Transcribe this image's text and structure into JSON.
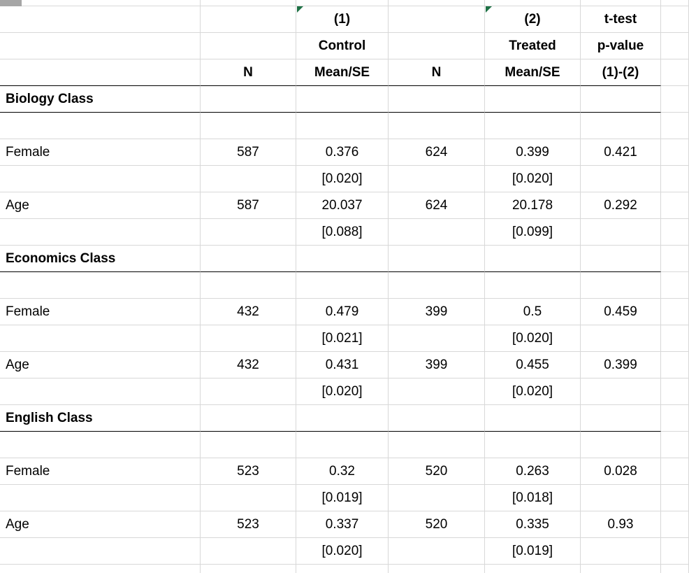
{
  "colors": {
    "background": "#ffffff",
    "text": "#000000",
    "gridline": "#d8d8d8",
    "section_rule": "#000000",
    "error_indicator": "#1e7145",
    "corner_box": "#a6a6a6"
  },
  "indicators": {
    "icon": "cell-error-corner-triangle",
    "count": 2
  },
  "table": {
    "rows": [
      {
        "style": "header",
        "underline": false,
        "cells": [
          "",
          "",
          "(1)",
          "",
          "(2)",
          "t-test"
        ]
      },
      {
        "style": "header",
        "underline": false,
        "cells": [
          "",
          "",
          "Control",
          "",
          "Treated",
          "p-value"
        ]
      },
      {
        "style": "header",
        "underline": true,
        "cells": [
          "",
          "N",
          "Mean/SE",
          "N",
          "Mean/SE",
          "(1)-(2)"
        ]
      },
      {
        "style": "section",
        "underline": true,
        "cells": [
          "Biology Class",
          "",
          "",
          "",
          "",
          ""
        ]
      },
      {
        "style": "empty",
        "underline": false,
        "cells": [
          "",
          "",
          "",
          "",
          "",
          ""
        ]
      },
      {
        "style": "data",
        "underline": false,
        "cells": [
          "Female",
          "587",
          "0.376",
          "624",
          "0.399",
          "0.421"
        ]
      },
      {
        "style": "se",
        "underline": false,
        "cells": [
          "",
          "",
          "[0.020]",
          "",
          "[0.020]",
          ""
        ]
      },
      {
        "style": "data",
        "underline": false,
        "cells": [
          "Age",
          "587",
          "20.037",
          "624",
          "20.178",
          "0.292"
        ]
      },
      {
        "style": "se",
        "underline": false,
        "cells": [
          "",
          "",
          "[0.088]",
          "",
          "[0.099]",
          ""
        ]
      },
      {
        "style": "section",
        "underline": true,
        "cells": [
          "Economics Class",
          "",
          "",
          "",
          "",
          ""
        ]
      },
      {
        "style": "empty",
        "underline": false,
        "cells": [
          "",
          "",
          "",
          "",
          "",
          ""
        ]
      },
      {
        "style": "data",
        "underline": false,
        "cells": [
          "Female",
          "432",
          "0.479",
          "399",
          "0.5",
          "0.459"
        ]
      },
      {
        "style": "se",
        "underline": false,
        "cells": [
          "",
          "",
          "[0.021]",
          "",
          "[0.020]",
          ""
        ]
      },
      {
        "style": "data",
        "underline": false,
        "cells": [
          "Age",
          "432",
          "0.431",
          "399",
          "0.455",
          "0.399"
        ]
      },
      {
        "style": "se",
        "underline": false,
        "cells": [
          "",
          "",
          "[0.020]",
          "",
          "[0.020]",
          ""
        ]
      },
      {
        "style": "section",
        "underline": true,
        "cells": [
          "English Class",
          "",
          "",
          "",
          "",
          ""
        ]
      },
      {
        "style": "empty",
        "underline": false,
        "cells": [
          "",
          "",
          "",
          "",
          "",
          ""
        ]
      },
      {
        "style": "data",
        "underline": false,
        "cells": [
          "Female",
          "523",
          "0.32",
          "520",
          "0.263",
          "0.028"
        ]
      },
      {
        "style": "se",
        "underline": false,
        "cells": [
          "",
          "",
          "[0.019]",
          "",
          "[0.018]",
          ""
        ]
      },
      {
        "style": "data",
        "underline": false,
        "cells": [
          "Age",
          "523",
          "0.337",
          "520",
          "0.335",
          "0.93"
        ]
      },
      {
        "style": "se",
        "underline": false,
        "cells": [
          "",
          "",
          "[0.020]",
          "",
          "[0.019]",
          ""
        ]
      }
    ]
  }
}
